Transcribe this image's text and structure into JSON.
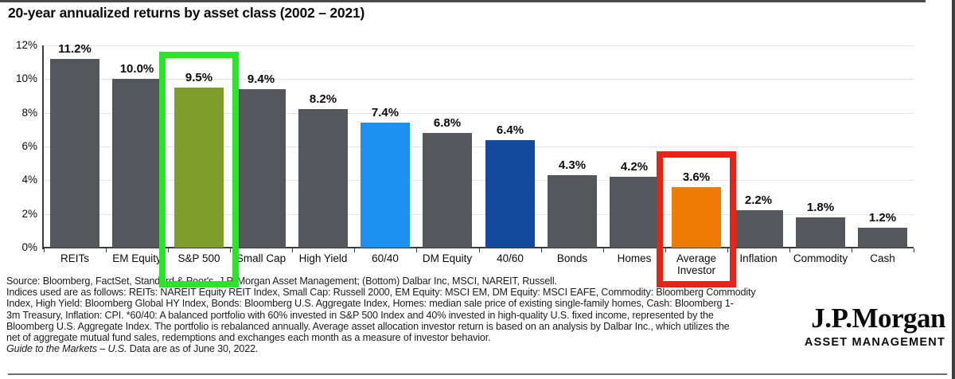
{
  "chart_data": {
    "type": "bar",
    "title": "20-year annualized returns by asset class (2002 – 2021)",
    "categories": [
      "REITs",
      "EM Equity",
      "S&P 500",
      "Small Cap",
      "High Yield",
      "60/40",
      "DM Equity",
      "40/60",
      "Bonds",
      "Homes",
      "Average Investor",
      "Inflation",
      "Commodity",
      "Cash"
    ],
    "values": [
      11.2,
      10.0,
      9.5,
      9.4,
      8.2,
      7.4,
      6.8,
      6.4,
      4.3,
      4.2,
      3.6,
      2.2,
      1.8,
      1.2
    ],
    "value_labels": [
      "11.2%",
      "10.0%",
      "9.5%",
      "9.4%",
      "8.2%",
      "7.4%",
      "6.8%",
      "6.4%",
      "4.3%",
      "4.2%",
      "3.6%",
      "2.2%",
      "1.8%",
      "1.2%"
    ],
    "xlabel": "",
    "ylabel": "",
    "ylim": [
      0,
      12
    ],
    "ytick_labels": [
      "0%",
      "2%",
      "4%",
      "6%",
      "8%",
      "10%",
      "12%"
    ],
    "grid": true,
    "legend": "none",
    "default_bar_color": "#54575b",
    "bar_color_overrides": {
      "S&P 500": "#7f9d2b",
      "60/40": "#1e90f2",
      "40/60": "#14499c",
      "Average Investor": "#ee7c04"
    },
    "highlight_boxes": [
      {
        "target": "S&P 500",
        "color": "#2ce32b"
      },
      {
        "target": "Average Investor",
        "color": "#e2261a"
      }
    ]
  },
  "footnote": {
    "lines": [
      "Source: Bloomberg, FactSet, Standard & Poor's, J.P. Morgan Asset Management; (Bottom) Dalbar Inc, MSCI, NAREIT, Russell.",
      "Indices used are as follows: REITs: NAREIT Equity REIT Index, Small Cap: Russell 2000, EM Equity: MSCI EM, DM Equity: MSCI EAFE, Commodity: Bloomberg Commodity",
      "Index, High Yield: Bloomberg Global HY Index, Bonds: Bloomberg U.S. Aggregate Index, Homes: median sale price of existing single-family homes, Cash: Bloomberg 1-",
      "3m Treasury, Inflation: CPI. *60/40: A balanced portfolio with 60% invested in S&P 500 Index and 40% invested in high-quality U.S. fixed income, represented by the",
      "Bloomberg U.S. Aggregate Index. The portfolio is rebalanced annually. Average asset allocation investor return is based on an analysis by Dalbar Inc., which utilizes the",
      "net of aggregate mutual fund sales, redemptions and exchanges each month as a measure of investor behavior."
    ],
    "gtm_italic": "Guide to the Markets – U.S.",
    "gtm_rest": " Data are as of June 30, 2022."
  },
  "logo": {
    "brand": "J.P.Morgan",
    "division": "ASSET MANAGEMENT"
  }
}
